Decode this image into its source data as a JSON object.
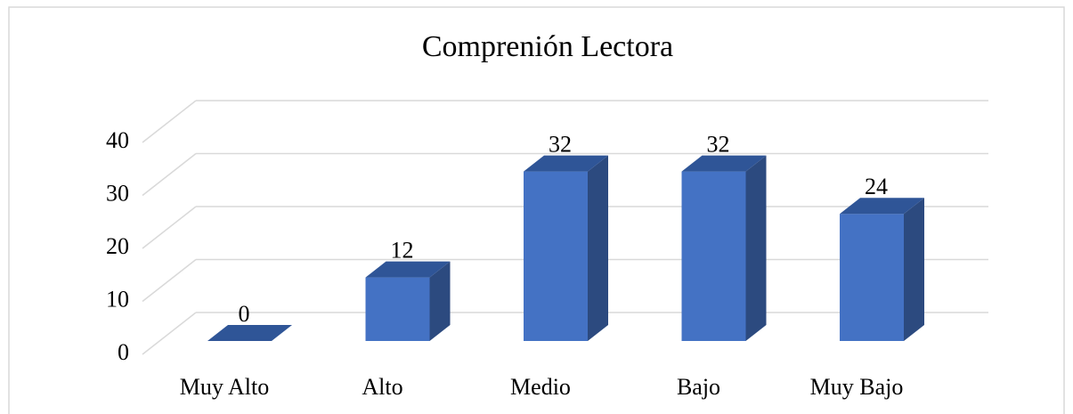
{
  "chart_data": {
    "type": "bar3d",
    "title": "Comprenión Lectora",
    "categories": [
      "Muy Alto",
      "Alto",
      "Medio",
      "Bajo",
      "Muy Bajo"
    ],
    "values": [
      0,
      12,
      32,
      32,
      24
    ],
    "color": "#4472c4",
    "ylim": [
      0,
      40
    ],
    "yticks": [
      0,
      10,
      20,
      30,
      40
    ],
    "grid": true
  }
}
